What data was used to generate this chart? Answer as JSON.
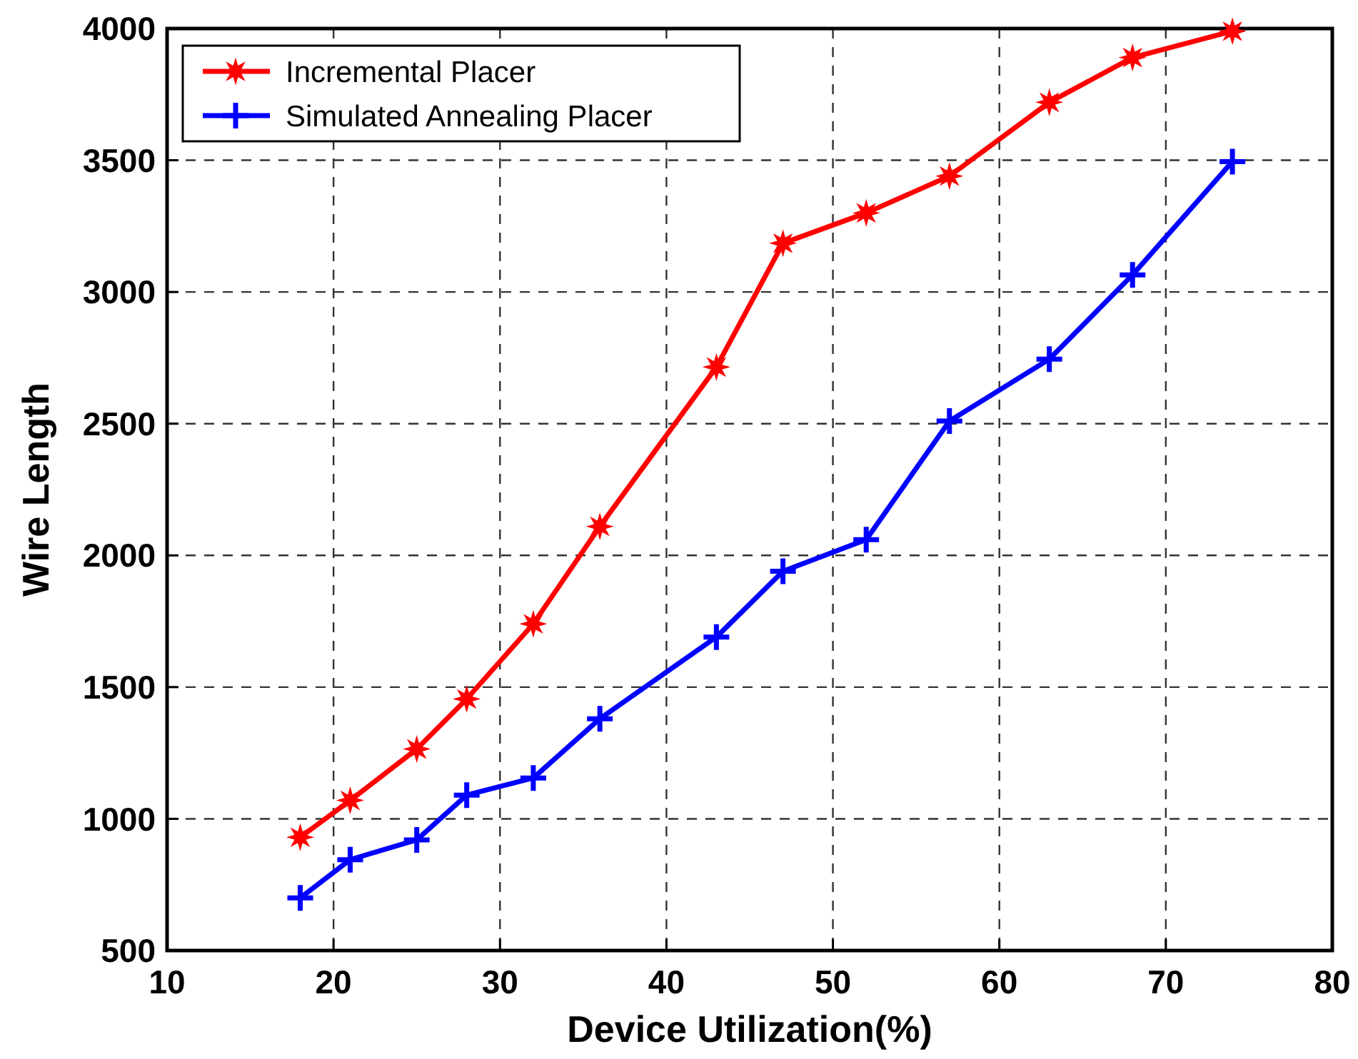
{
  "chart_data": {
    "type": "line",
    "xlabel": "Device Utilization(%)",
    "ylabel": "Wire Length",
    "x": [
      18,
      21,
      25,
      28,
      32,
      36,
      43,
      47,
      52,
      57,
      63,
      68,
      74
    ],
    "series": [
      {
        "name": "Incremental Placer",
        "color": "#ff0000",
        "marker": "star",
        "values": [
          930,
          1070,
          1265,
          1455,
          1740,
          2110,
          2715,
          3185,
          3300,
          3440,
          3720,
          3890,
          3990
        ]
      },
      {
        "name": "Simulated Annealing Placer",
        "color": "#0000ff",
        "marker": "cross",
        "values": [
          700,
          845,
          920,
          1090,
          1155,
          1380,
          1690,
          1940,
          2060,
          2510,
          2745,
          3065,
          3495
        ]
      }
    ],
    "xlim": [
      10,
      80
    ],
    "xticks": [
      10,
      20,
      30,
      40,
      50,
      60,
      70,
      80
    ],
    "ylim": [
      500,
      4000
    ],
    "yticks": [
      500,
      1000,
      1500,
      2000,
      2500,
      3000,
      3500,
      4000
    ],
    "grid": true,
    "legend": "top left",
    "line_style": "solid"
  }
}
